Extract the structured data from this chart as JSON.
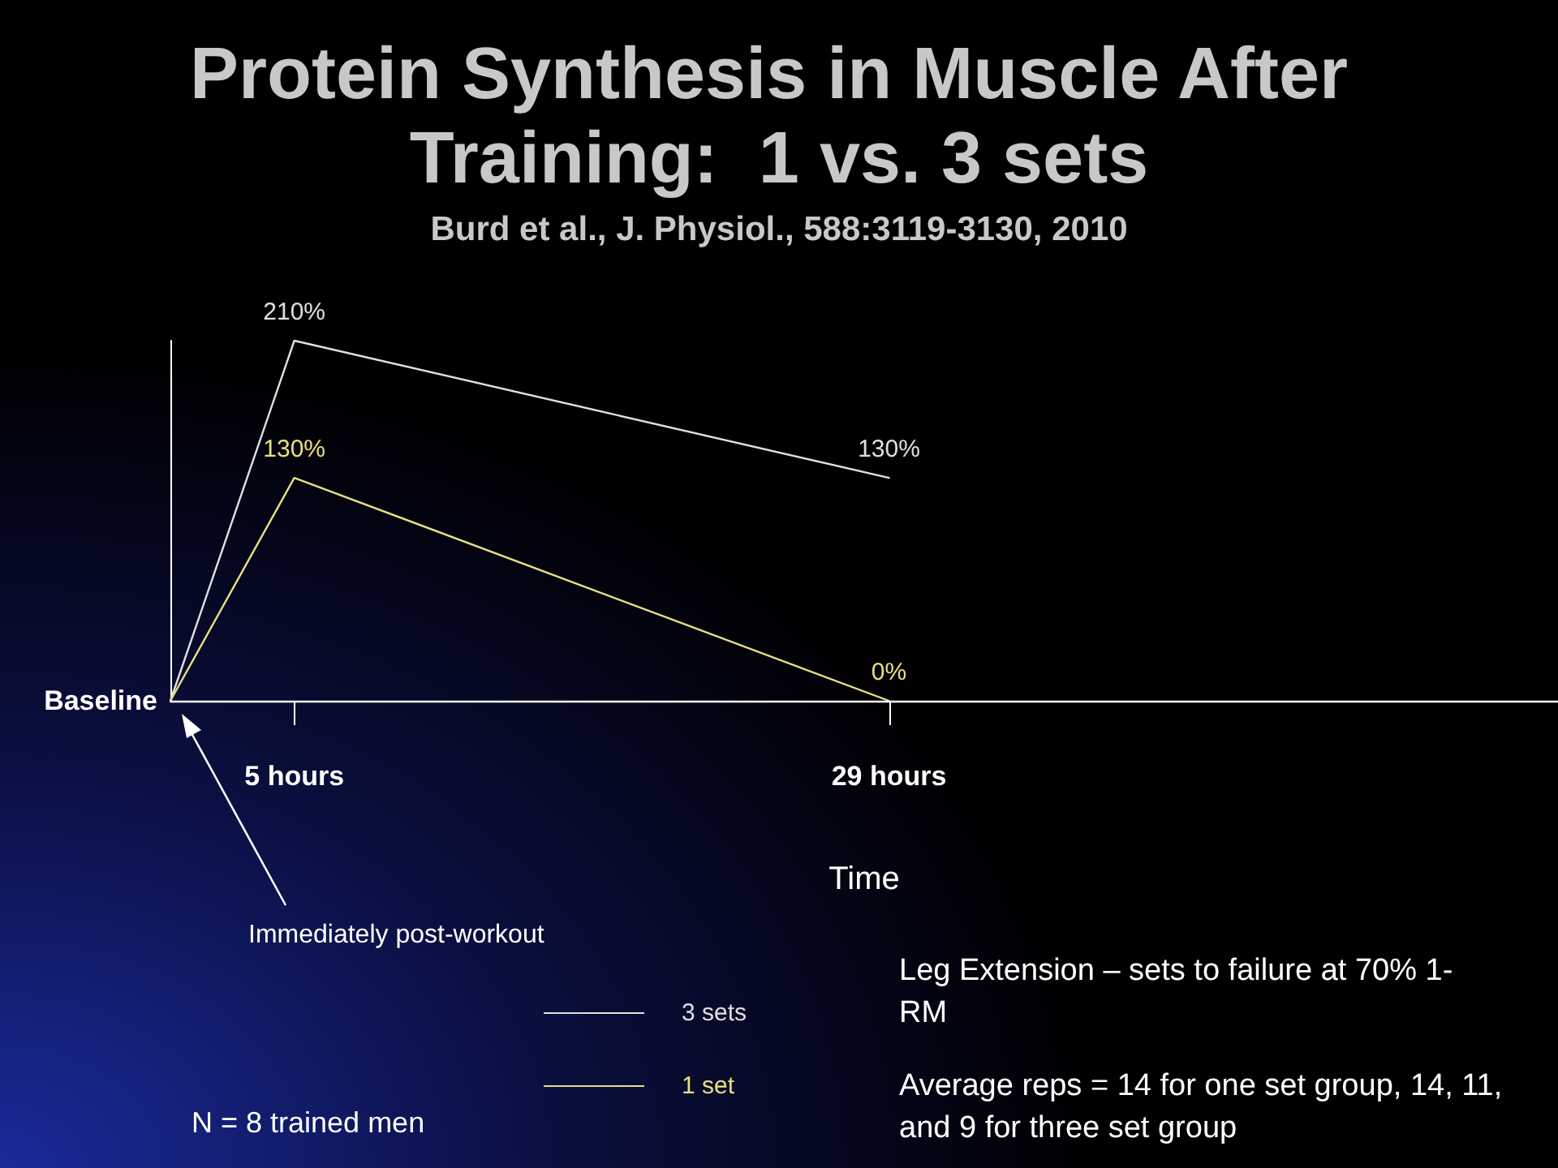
{
  "chart_data": {
    "type": "line",
    "title": "Protein Synthesis in Muscle After Training:  1 vs. 3 sets",
    "subtitle": "Burd et al., J. Physiol., 588:3119-3130, 2010",
    "xlabel": "Time",
    "x": [
      0,
      5,
      29
    ],
    "xlim": [
      0,
      56
    ],
    "xticks": [
      {
        "value": 5,
        "label": "5 hours"
      },
      {
        "value": 29,
        "label": "29 hours"
      }
    ],
    "ylim": [
      0,
      210
    ],
    "tick_labels": "x",
    "grid": false,
    "legend": "bottom",
    "marker": "none",
    "line_style": "solid",
    "series": [
      {
        "name": "3 sets",
        "color": "#e0e0e0",
        "values": [
          0,
          210,
          130
        ],
        "value_labels": [
          null,
          "210%",
          "130%"
        ]
      },
      {
        "name": "1 set",
        "color": "#e8e080",
        "values": [
          0,
          130,
          0
        ],
        "value_labels": [
          null,
          "130%",
          "0%"
        ]
      }
    ],
    "ref_lines": [
      {
        "axis": "y",
        "value": 0,
        "label": "Baseline",
        "color": "#ffffff"
      }
    ],
    "annotations": [
      "Immediately post-workout",
      "N = 8 trained men",
      "Leg Extension – sets to failure at 70% 1-RM",
      "Average reps = 14 for one set group, 14, 11, and 9 for three set group"
    ]
  }
}
